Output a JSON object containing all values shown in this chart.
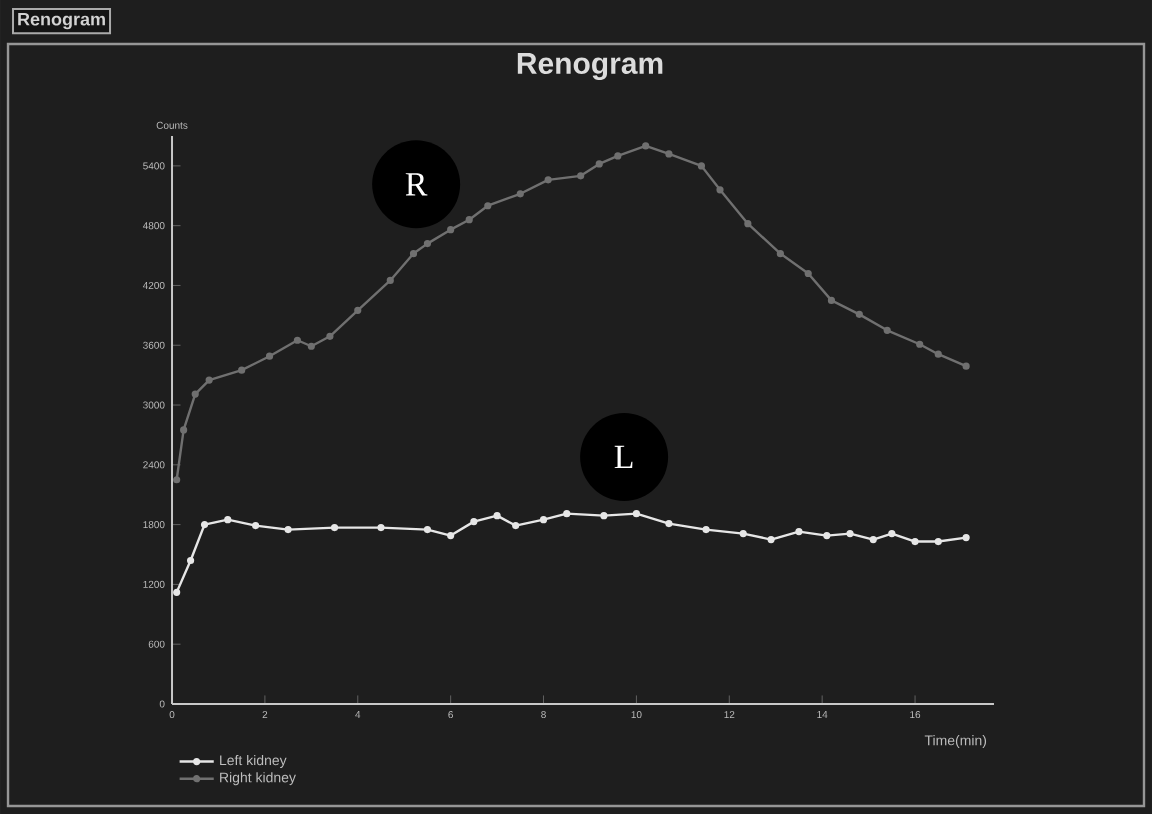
{
  "chart_data": {
    "type": "line",
    "title": "Renogram",
    "ylabel": "Counts",
    "xlabel": "Time(min)",
    "annotations": [
      "Renogram",
      "R",
      "L"
    ],
    "xlim": [
      0,
      17.7
    ],
    "ylim": [
      0,
      5700
    ],
    "xticks": [
      0,
      2,
      4,
      6,
      8,
      10,
      12,
      14,
      16
    ],
    "yticks": [
      0,
      600,
      1200,
      1800,
      2400,
      3000,
      3600,
      4200,
      4800,
      5400
    ],
    "legend": "bottom left",
    "marker": "circle",
    "line_style": "solid",
    "series": [
      {
        "name": "Left kidney",
        "color": "#e6e6e6",
        "x": [
          0.1,
          0.4,
          0.7,
          1.2,
          1.8,
          2.5,
          3.5,
          4.5,
          5.5,
          6.0,
          6.5,
          7.0,
          7.4,
          8.0,
          8.5,
          9.3,
          10.0,
          10.7,
          11.5,
          12.3,
          12.9,
          13.5,
          14.1,
          14.6,
          15.1,
          15.5,
          16.0,
          16.5,
          17.1
        ],
        "values": [
          1120,
          1440,
          1800,
          1850,
          1790,
          1750,
          1770,
          1770,
          1750,
          1690,
          1830,
          1890,
          1790,
          1850,
          1910,
          1890,
          1910,
          1810,
          1750,
          1710,
          1650,
          1730,
          1690,
          1710,
          1650,
          1710,
          1630,
          1630,
          1670
        ]
      },
      {
        "name": "Right kidney",
        "color": "#707070",
        "x": [
          0.1,
          0.25,
          0.5,
          0.8,
          1.5,
          2.1,
          2.7,
          3.0,
          3.4,
          4.0,
          4.7,
          5.2,
          5.5,
          6.0,
          6.4,
          6.8,
          7.5,
          8.1,
          8.8,
          9.2,
          9.6,
          10.2,
          10.7,
          11.4,
          11.8,
          12.4,
          13.1,
          13.7,
          14.2,
          14.8,
          15.4,
          16.1,
          16.5,
          17.1
        ],
        "values": [
          2250,
          2750,
          3110,
          3250,
          3350,
          3490,
          3650,
          3590,
          3690,
          3950,
          4250,
          4520,
          4620,
          4760,
          4860,
          5000,
          5120,
          5260,
          5300,
          5420,
          5500,
          5600,
          5520,
          5400,
          5160,
          4820,
          4520,
          4320,
          4050,
          3910,
          3750,
          3610,
          3510,
          3390
        ]
      }
    ]
  }
}
